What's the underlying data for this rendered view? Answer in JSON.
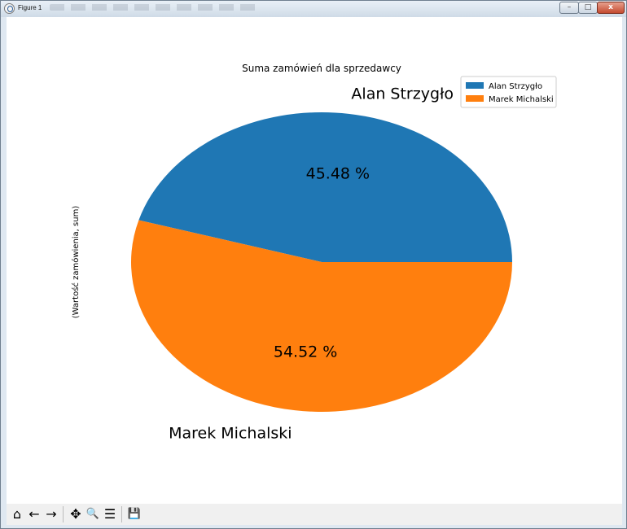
{
  "window": {
    "title": "Figure 1",
    "controls": {
      "minimize": "–",
      "maximize": "□",
      "close": "x"
    }
  },
  "toolbar": {
    "buttons": [
      {
        "name": "home-icon",
        "glyph": "⌂"
      },
      {
        "name": "back-icon",
        "glyph": "←"
      },
      {
        "name": "forward-icon",
        "glyph": "→"
      },
      {
        "name": "pan-icon",
        "glyph": "✥"
      },
      {
        "name": "zoom-icon",
        "glyph": "🔍"
      },
      {
        "name": "configure-subplots-icon",
        "glyph": "☰"
      },
      {
        "name": "save-icon",
        "glyph": "💾"
      }
    ]
  },
  "chart_data": {
    "type": "pie",
    "title": "Suma zamówień dla sprzedawcy",
    "ylabel": "(Wartość zamówienia, sum)",
    "xlabel": "",
    "categories": [
      "Alan Strzygło",
      "Marek Michalski"
    ],
    "values": [
      45.48,
      54.52
    ],
    "value_labels": [
      "45.48 %",
      "54.52 %"
    ],
    "colors": [
      "#1f77b4",
      "#ff7f0e"
    ],
    "start_angle_deg": 0,
    "direction": "counterclockwise",
    "legend": {
      "position": "top-right",
      "entries": [
        "Alan Strzygło",
        "Marek Michalski"
      ]
    }
  }
}
